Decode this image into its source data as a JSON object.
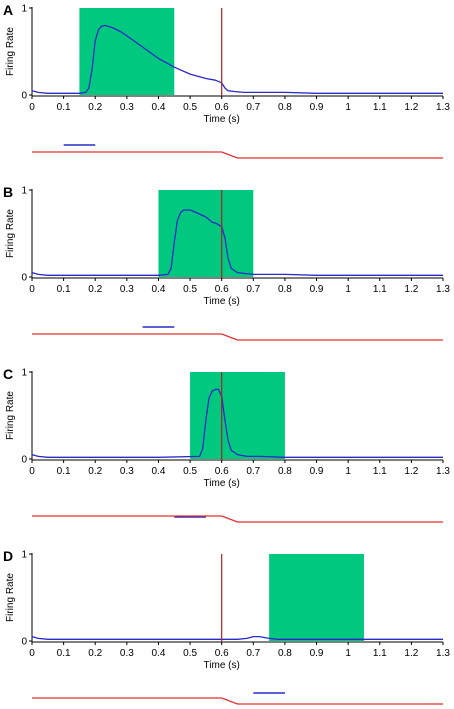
{
  "colors": {
    "window": "#00c97f",
    "response": "#2a2ac8",
    "marker": "#b02020",
    "trace": "#e03030",
    "axis": "#000000"
  },
  "chart_data": [
    {
      "type": "line",
      "panel": "A",
      "xlabel": "Time (s)",
      "ylabel": "Firing Rate",
      "xlim": [
        0,
        1.3
      ],
      "ylim": [
        0,
        1
      ],
      "xticks": [
        "0",
        "0.1",
        "0.2",
        "0.3",
        "0.4",
        "0.5",
        "0.6",
        "0.7",
        "0.8",
        "0.9",
        "1",
        "1.1",
        "1.2",
        "1.3"
      ],
      "yticks": [
        "0",
        "1"
      ],
      "window": [
        0.15,
        0.45
      ],
      "marker_x": 0.6,
      "x": [
        0,
        0.02,
        0.05,
        0.1,
        0.15,
        0.17,
        0.18,
        0.19,
        0.2,
        0.21,
        0.22,
        0.23,
        0.25,
        0.28,
        0.3,
        0.35,
        0.4,
        0.45,
        0.5,
        0.55,
        0.58,
        0.6,
        0.61,
        0.62,
        0.64,
        0.67,
        0.7,
        0.8,
        0.9,
        1.0,
        1.1,
        1.2,
        1.3
      ],
      "values": [
        0.05,
        0.03,
        0.02,
        0.02,
        0.02,
        0.03,
        0.08,
        0.3,
        0.62,
        0.75,
        0.79,
        0.8,
        0.78,
        0.73,
        0.68,
        0.55,
        0.42,
        0.32,
        0.24,
        0.19,
        0.17,
        0.14,
        0.08,
        0.05,
        0.04,
        0.03,
        0.03,
        0.03,
        0.02,
        0.02,
        0.02,
        0.02,
        0.02
      ],
      "cue_bar": [
        0.1,
        0.2
      ],
      "trace": {
        "high_until": 0.6,
        "ramp_to": 0.65
      }
    },
    {
      "type": "line",
      "panel": "B",
      "xlabel": "Time (s)",
      "ylabel": "Firing Rate",
      "xlim": [
        0,
        1.3
      ],
      "ylim": [
        0,
        1
      ],
      "xticks": [
        "0",
        "0.1",
        "0.2",
        "0.3",
        "0.4",
        "0.5",
        "0.6",
        "0.7",
        "0.8",
        "0.9",
        "1",
        "1.1",
        "1.2",
        "1.3"
      ],
      "yticks": [
        "0",
        "1"
      ],
      "window": [
        0.4,
        0.7
      ],
      "marker_x": 0.6,
      "x": [
        0,
        0.02,
        0.05,
        0.2,
        0.4,
        0.43,
        0.44,
        0.45,
        0.46,
        0.47,
        0.48,
        0.5,
        0.52,
        0.55,
        0.57,
        0.58,
        0.6,
        0.61,
        0.62,
        0.63,
        0.65,
        0.7,
        0.8,
        0.9,
        1.0,
        1.1,
        1.2,
        1.3
      ],
      "values": [
        0.05,
        0.03,
        0.02,
        0.02,
        0.02,
        0.03,
        0.1,
        0.4,
        0.65,
        0.74,
        0.77,
        0.77,
        0.74,
        0.69,
        0.63,
        0.62,
        0.58,
        0.45,
        0.22,
        0.1,
        0.05,
        0.03,
        0.03,
        0.02,
        0.02,
        0.02,
        0.02,
        0.02
      ],
      "cue_bar": [
        0.35,
        0.45
      ],
      "trace": {
        "high_until": 0.6,
        "ramp_to": 0.65
      }
    },
    {
      "type": "line",
      "panel": "C",
      "xlabel": "Time (s)",
      "ylabel": "Firing Rate",
      "xlim": [
        0,
        1.3
      ],
      "ylim": [
        0,
        1
      ],
      "xticks": [
        "0",
        "0.1",
        "0.2",
        "0.3",
        "0.4",
        "0.5",
        "0.6",
        "0.7",
        "0.8",
        "0.9",
        "1",
        "1.1",
        "1.2",
        "1.3"
      ],
      "yticks": [
        "0",
        "1"
      ],
      "window": [
        0.5,
        0.8
      ],
      "marker_x": 0.6,
      "x": [
        0,
        0.02,
        0.05,
        0.2,
        0.4,
        0.53,
        0.54,
        0.55,
        0.56,
        0.57,
        0.58,
        0.59,
        0.6,
        0.61,
        0.62,
        0.63,
        0.65,
        0.68,
        0.72,
        0.8,
        0.9,
        1.0,
        1.1,
        1.2,
        1.3
      ],
      "values": [
        0.05,
        0.03,
        0.02,
        0.02,
        0.02,
        0.03,
        0.12,
        0.45,
        0.7,
        0.78,
        0.8,
        0.8,
        0.72,
        0.45,
        0.22,
        0.1,
        0.05,
        0.03,
        0.03,
        0.02,
        0.02,
        0.02,
        0.02,
        0.02,
        0.02
      ],
      "cue_bar": [
        0.45,
        0.55
      ],
      "trace": {
        "high_until": 0.6,
        "ramp_to": 0.65
      }
    },
    {
      "type": "line",
      "panel": "D",
      "xlabel": "Time (s)",
      "ylabel": "Firing Rate",
      "xlim": [
        0,
        1.3
      ],
      "ylim": [
        0,
        1
      ],
      "xticks": [
        "0",
        "0.1",
        "0.2",
        "0.3",
        "0.4",
        "0.5",
        "0.6",
        "0.7",
        "0.8",
        "0.9",
        "1",
        "1.1",
        "1.2",
        "1.3"
      ],
      "yticks": [
        "0",
        "1"
      ],
      "window": [
        0.75,
        1.05
      ],
      "marker_x": 0.6,
      "x": [
        0,
        0.02,
        0.05,
        0.2,
        0.4,
        0.6,
        0.65,
        0.68,
        0.7,
        0.72,
        0.75,
        0.78,
        0.8,
        0.9,
        1.0,
        1.1,
        1.2,
        1.3
      ],
      "values": [
        0.05,
        0.03,
        0.02,
        0.02,
        0.02,
        0.02,
        0.02,
        0.03,
        0.05,
        0.05,
        0.03,
        0.02,
        0.02,
        0.02,
        0.02,
        0.02,
        0.02,
        0.02
      ],
      "cue_bar": [
        0.7,
        0.8
      ],
      "trace": {
        "high_until": 0.6,
        "ramp_to": 0.65
      }
    }
  ]
}
